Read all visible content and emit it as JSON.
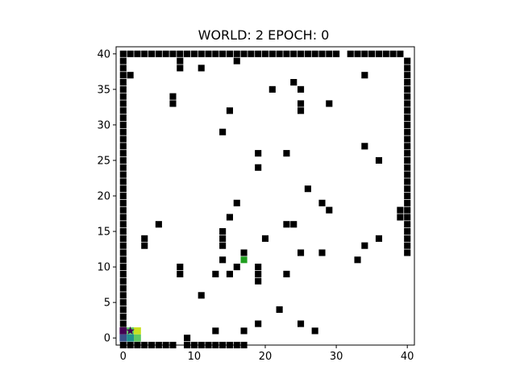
{
  "chart_data": {
    "type": "scatter",
    "title": "WORLD: 2 EPOCH: 0",
    "xlabel": "",
    "ylabel": "",
    "xlim": [
      -1,
      41
    ],
    "ylim": [
      -1,
      41
    ],
    "xticks": [
      0,
      10,
      20,
      30,
      40
    ],
    "yticks": [
      0,
      5,
      10,
      15,
      20,
      25,
      30,
      35,
      40
    ],
    "grid": false,
    "legend": "none",
    "colors": {
      "obstacle": "#000000",
      "goal": "#1f9e1f",
      "agent_star": "#440154",
      "viridis_dark": "#440154",
      "viridis_blue": "#3b528b",
      "viridis_teal": "#21908d",
      "viridis_green": "#5ec962",
      "viridis_yellow": "#c8e020"
    },
    "series": [
      {
        "role": "obstacles",
        "marker": "square",
        "points": [
          [
            0,
            40
          ],
          [
            1,
            40
          ],
          [
            2,
            40
          ],
          [
            3,
            40
          ],
          [
            4,
            40
          ],
          [
            5,
            40
          ],
          [
            6,
            40
          ],
          [
            7,
            40
          ],
          [
            8,
            40
          ],
          [
            9,
            40
          ],
          [
            10,
            40
          ],
          [
            11,
            40
          ],
          [
            12,
            40
          ],
          [
            13,
            40
          ],
          [
            14,
            40
          ],
          [
            15,
            40
          ],
          [
            16,
            40
          ],
          [
            17,
            40
          ],
          [
            18,
            40
          ],
          [
            19,
            40
          ],
          [
            20,
            40
          ],
          [
            21,
            40
          ],
          [
            22,
            40
          ],
          [
            23,
            40
          ],
          [
            24,
            40
          ],
          [
            25,
            40
          ],
          [
            26,
            40
          ],
          [
            27,
            40
          ],
          [
            28,
            40
          ],
          [
            29,
            40
          ],
          [
            30,
            40
          ],
          [
            32,
            40
          ],
          [
            33,
            40
          ],
          [
            34,
            40
          ],
          [
            35,
            40
          ],
          [
            36,
            40
          ],
          [
            37,
            40
          ],
          [
            38,
            40
          ],
          [
            39,
            40
          ],
          [
            8,
            39
          ],
          [
            8,
            38
          ],
          [
            16,
            39
          ],
          [
            11,
            38
          ],
          [
            1,
            37
          ],
          [
            34,
            37
          ],
          [
            24,
            36
          ],
          [
            21,
            35
          ],
          [
            25,
            35
          ],
          [
            7,
            34
          ],
          [
            7,
            33
          ],
          [
            25,
            33
          ],
          [
            25,
            32
          ],
          [
            29,
            33
          ],
          [
            15,
            32
          ],
          [
            14,
            29
          ],
          [
            34,
            27
          ],
          [
            19,
            26
          ],
          [
            23,
            26
          ],
          [
            36,
            25
          ],
          [
            19,
            24
          ],
          [
            26,
            21
          ],
          [
            28,
            19
          ],
          [
            29,
            18
          ],
          [
            16,
            19
          ],
          [
            15,
            17
          ],
          [
            39,
            18
          ],
          [
            39,
            17
          ],
          [
            5,
            16
          ],
          [
            23,
            16
          ],
          [
            24,
            16
          ],
          [
            14,
            15
          ],
          [
            14,
            14
          ],
          [
            14,
            13
          ],
          [
            3,
            14
          ],
          [
            3,
            13
          ],
          [
            20,
            14
          ],
          [
            36,
            14
          ],
          [
            34,
            13
          ],
          [
            17,
            12
          ],
          [
            25,
            12
          ],
          [
            28,
            12
          ],
          [
            14,
            11
          ],
          [
            33,
            11
          ],
          [
            16,
            10
          ],
          [
            8,
            10
          ],
          [
            8,
            9
          ],
          [
            13,
            9
          ],
          [
            15,
            9
          ],
          [
            19,
            10
          ],
          [
            19,
            9
          ],
          [
            19,
            8
          ],
          [
            23,
            9
          ],
          [
            11,
            6
          ],
          [
            22,
            4
          ],
          [
            19,
            2
          ],
          [
            25,
            2
          ],
          [
            13,
            1
          ],
          [
            17,
            1
          ],
          [
            27,
            1
          ],
          [
            9,
            0
          ],
          [
            0,
            -1
          ],
          [
            1,
            -1
          ],
          [
            2,
            -1
          ],
          [
            3,
            -1
          ],
          [
            4,
            -1
          ],
          [
            5,
            -1
          ],
          [
            6,
            -1
          ],
          [
            7,
            -1
          ],
          [
            9,
            -1
          ],
          [
            10,
            -1
          ],
          [
            11,
            -1
          ],
          [
            12,
            -1
          ],
          [
            13,
            -1
          ],
          [
            14,
            -1
          ],
          [
            15,
            -1
          ],
          [
            16,
            -1
          ],
          [
            17,
            -1
          ],
          [
            0,
            39
          ],
          [
            0,
            38
          ],
          [
            0,
            37
          ],
          [
            0,
            36
          ],
          [
            0,
            35
          ],
          [
            0,
            34
          ],
          [
            0,
            33
          ],
          [
            0,
            32
          ],
          [
            0,
            31
          ],
          [
            0,
            30
          ],
          [
            0,
            29
          ],
          [
            0,
            28
          ],
          [
            0,
            27
          ],
          [
            0,
            26
          ],
          [
            0,
            25
          ],
          [
            0,
            24
          ],
          [
            0,
            23
          ],
          [
            0,
            22
          ],
          [
            0,
            21
          ],
          [
            0,
            20
          ],
          [
            0,
            19
          ],
          [
            0,
            18
          ],
          [
            0,
            17
          ],
          [
            0,
            16
          ],
          [
            0,
            15
          ],
          [
            0,
            14
          ],
          [
            0,
            13
          ],
          [
            0,
            12
          ],
          [
            0,
            11
          ],
          [
            0,
            10
          ],
          [
            0,
            9
          ],
          [
            0,
            8
          ],
          [
            0,
            7
          ],
          [
            0,
            6
          ],
          [
            0,
            5
          ],
          [
            0,
            4
          ],
          [
            0,
            3
          ],
          [
            0,
            2
          ],
          [
            40,
            39
          ],
          [
            40,
            38
          ],
          [
            40,
            37
          ],
          [
            40,
            36
          ],
          [
            40,
            35
          ],
          [
            40,
            34
          ],
          [
            40,
            33
          ],
          [
            40,
            32
          ],
          [
            40,
            31
          ],
          [
            40,
            30
          ],
          [
            40,
            29
          ],
          [
            40,
            28
          ],
          [
            40,
            27
          ],
          [
            40,
            26
          ],
          [
            40,
            25
          ],
          [
            40,
            24
          ],
          [
            40,
            23
          ],
          [
            40,
            22
          ],
          [
            40,
            21
          ],
          [
            40,
            20
          ],
          [
            40,
            19
          ],
          [
            40,
            18
          ],
          [
            40,
            17
          ],
          [
            40,
            16
          ],
          [
            40,
            15
          ],
          [
            40,
            14
          ],
          [
            40,
            13
          ],
          [
            40,
            12
          ]
        ]
      },
      {
        "role": "goal",
        "marker": "square",
        "points": [
          [
            17,
            11
          ]
        ]
      },
      {
        "role": "agent-heatmap",
        "marker": "square",
        "cells": [
          [
            0,
            1,
            "viridis_dark"
          ],
          [
            1,
            1,
            "viridis_green"
          ],
          [
            2,
            1,
            "viridis_yellow"
          ],
          [
            0,
            0,
            "viridis_blue"
          ],
          [
            1,
            0,
            "viridis_teal"
          ],
          [
            2,
            0,
            "viridis_green"
          ]
        ]
      },
      {
        "role": "agent",
        "marker": "star",
        "points": [
          [
            1,
            1
          ]
        ]
      }
    ]
  }
}
